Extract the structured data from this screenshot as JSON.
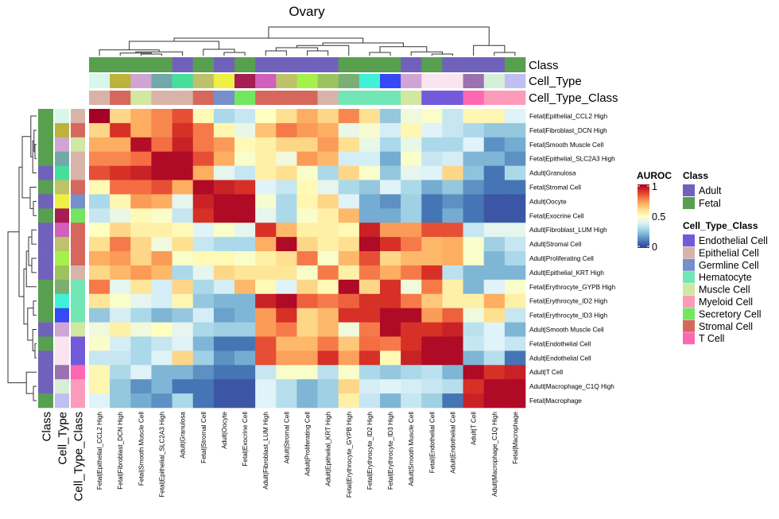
{
  "chart_data": {
    "type": "heatmap",
    "title": "Ovary",
    "colorbar": {
      "title": "AUROC",
      "range": [
        0,
        1
      ],
      "ticks": [
        "0",
        "0.5",
        "1"
      ],
      "palette": "RdYlBu reversed"
    },
    "columns": [
      "Fetal|Epithelial_CCL2 High",
      "Fetal|Fibroblast_DCN High",
      "Fetal|Smooth Muscle Cell",
      "Fetal|Epithelial_SLC2A3 High",
      "Adult|Granulosa",
      "Fetal|Stromal Cell",
      "Adult|Oocyte",
      "Fetal|Exocrine Cell",
      "Adult|Fibroblast_LUM High",
      "Adult|Stromal Cell",
      "Adult|Proliferating Cell",
      "Adult|Epithelial_KRT High",
      "Fetal|Erythrocyte_GYPB High",
      "Fetal|Erythrocyte_ID2 High",
      "Fetal|Erythrocyte_ID3 High",
      "Adult|Smooth Muscle Cell",
      "Fetal|Endothelial Cell",
      "Adult|Endothelial Cell",
      "Adult|T Cell",
      "Adult|Macrophage_C1Q High",
      "Fetal|Macrophage"
    ],
    "rows": [
      "Fetal|Epithelial_CCL2 High",
      "Fetal|Fibroblast_DCN High",
      "Fetal|Smooth Muscle Cell",
      "Fetal|Epithelial_SLC2A3 High",
      "Adult|Granulosa",
      "Fetal|Stromal Cell",
      "Adult|Oocyte",
      "Fetal|Exocrine Cell",
      "Adult|Fibroblast_LUM High",
      "Adult|Stromal Cell",
      "Adult|Proliferating Cell",
      "Adult|Epithelial_KRT High",
      "Fetal|Erythrocyte_GYPB High",
      "Fetal|Erythrocyte_ID2 High",
      "Fetal|Erythrocyte_ID3 High",
      "Adult|Smooth Muscle Cell",
      "Fetal|Endothelial Cell",
      "Adult|Endothelial Cell",
      "Adult|T Cell",
      "Adult|Macrophage_C1Q High",
      "Fetal|Macrophage"
    ],
    "values": [
      [
        1.0,
        0.62,
        0.7,
        0.76,
        0.85,
        0.52,
        0.3,
        0.35,
        0.5,
        0.6,
        0.7,
        0.62,
        0.76,
        0.6,
        0.26,
        0.45,
        0.48,
        0.35,
        0.53,
        0.53,
        0.4
      ],
      [
        0.62,
        0.9,
        0.7,
        0.76,
        0.9,
        0.78,
        0.53,
        0.43,
        0.66,
        0.78,
        0.73,
        0.7,
        0.43,
        0.47,
        0.38,
        0.53,
        0.4,
        0.35,
        0.3,
        0.26,
        0.26
      ],
      [
        0.7,
        0.7,
        0.97,
        0.8,
        0.93,
        0.78,
        0.73,
        0.52,
        0.55,
        0.62,
        0.62,
        0.73,
        0.6,
        0.43,
        0.3,
        0.43,
        0.3,
        0.3,
        0.4,
        0.15,
        0.2
      ],
      [
        0.76,
        0.76,
        0.8,
        0.98,
        0.98,
        0.85,
        0.7,
        0.48,
        0.55,
        0.45,
        0.73,
        0.68,
        0.38,
        0.38,
        0.2,
        0.48,
        0.35,
        0.38,
        0.22,
        0.22,
        0.15
      ],
      [
        0.85,
        0.9,
        0.93,
        0.98,
        0.98,
        0.7,
        0.42,
        0.35,
        0.55,
        0.6,
        0.48,
        0.3,
        0.62,
        0.48,
        0.26,
        0.42,
        0.4,
        0.62,
        0.25,
        0.1,
        0.3
      ],
      [
        0.52,
        0.8,
        0.8,
        0.85,
        0.7,
        0.98,
        0.93,
        0.9,
        0.4,
        0.35,
        0.52,
        0.42,
        0.3,
        0.26,
        0.4,
        0.3,
        0.2,
        0.26,
        0.15,
        0.1,
        0.1
      ],
      [
        0.3,
        0.53,
        0.73,
        0.7,
        0.42,
        0.93,
        0.98,
        0.98,
        0.47,
        0.3,
        0.53,
        0.62,
        0.4,
        0.2,
        0.15,
        0.28,
        0.1,
        0.15,
        0.1,
        0.05,
        0.05
      ],
      [
        0.35,
        0.43,
        0.52,
        0.48,
        0.35,
        0.9,
        0.98,
        0.98,
        0.42,
        0.3,
        0.48,
        0.55,
        0.68,
        0.2,
        0.2,
        0.28,
        0.1,
        0.2,
        0.1,
        0.05,
        0.05
      ],
      [
        0.5,
        0.62,
        0.55,
        0.55,
        0.52,
        0.4,
        0.48,
        0.42,
        0.9,
        0.68,
        0.55,
        0.55,
        0.52,
        0.93,
        0.73,
        0.73,
        0.85,
        0.85,
        0.35,
        0.42,
        0.42
      ],
      [
        0.6,
        0.78,
        0.62,
        0.45,
        0.6,
        0.35,
        0.3,
        0.3,
        0.7,
        0.98,
        0.62,
        0.55,
        0.6,
        0.98,
        0.9,
        0.78,
        0.68,
        0.7,
        0.48,
        0.28,
        0.35
      ],
      [
        0.7,
        0.73,
        0.62,
        0.73,
        0.48,
        0.52,
        0.52,
        0.48,
        0.55,
        0.6,
        0.78,
        0.48,
        0.68,
        0.85,
        0.62,
        0.68,
        0.68,
        0.7,
        0.48,
        0.22,
        0.3
      ],
      [
        0.62,
        0.68,
        0.73,
        0.68,
        0.3,
        0.42,
        0.62,
        0.58,
        0.58,
        0.58,
        0.48,
        0.78,
        0.55,
        0.78,
        0.7,
        0.78,
        0.9,
        0.33,
        0.22,
        0.22,
        0.22
      ],
      [
        0.78,
        0.42,
        0.58,
        0.38,
        0.62,
        0.3,
        0.38,
        0.68,
        0.52,
        0.4,
        0.62,
        0.52,
        0.98,
        0.62,
        0.9,
        0.45,
        0.78,
        0.55,
        0.22,
        0.4,
        0.48
      ],
      [
        0.58,
        0.48,
        0.42,
        0.38,
        0.53,
        0.26,
        0.22,
        0.22,
        0.93,
        0.98,
        0.82,
        0.78,
        0.82,
        0.9,
        0.9,
        0.78,
        0.65,
        0.55,
        0.55,
        0.7,
        0.55
      ],
      [
        0.26,
        0.38,
        0.3,
        0.22,
        0.26,
        0.38,
        0.18,
        0.22,
        0.73,
        0.9,
        0.62,
        0.68,
        0.9,
        0.9,
        0.98,
        0.98,
        0.73,
        0.82,
        0.45,
        0.6,
        0.35
      ],
      [
        0.45,
        0.55,
        0.45,
        0.5,
        0.42,
        0.3,
        0.28,
        0.28,
        0.73,
        0.78,
        0.62,
        0.68,
        0.45,
        0.78,
        0.98,
        0.9,
        0.9,
        0.93,
        0.33,
        0.4,
        0.22
      ],
      [
        0.48,
        0.38,
        0.3,
        0.35,
        0.4,
        0.22,
        0.1,
        0.1,
        0.85,
        0.68,
        0.68,
        0.78,
        0.65,
        0.8,
        0.78,
        0.9,
        0.98,
        0.98,
        0.35,
        0.4,
        0.35
      ],
      [
        0.35,
        0.35,
        0.3,
        0.4,
        0.62,
        0.28,
        0.15,
        0.2,
        0.85,
        0.72,
        0.72,
        0.9,
        0.72,
        0.9,
        0.52,
        0.93,
        0.98,
        0.98,
        0.22,
        0.32,
        0.1
      ],
      [
        0.53,
        0.3,
        0.4,
        0.22,
        0.22,
        0.15,
        0.1,
        0.1,
        0.35,
        0.48,
        0.48,
        0.33,
        0.48,
        0.3,
        0.26,
        0.3,
        0.33,
        0.22,
        0.98,
        0.9,
        0.93
      ],
      [
        0.53,
        0.26,
        0.15,
        0.22,
        0.1,
        0.1,
        0.05,
        0.05,
        0.4,
        0.32,
        0.22,
        0.28,
        0.62,
        0.38,
        0.4,
        0.38,
        0.35,
        0.32,
        0.9,
        0.98,
        0.98
      ],
      [
        0.4,
        0.26,
        0.2,
        0.15,
        0.3,
        0.1,
        0.05,
        0.05,
        0.4,
        0.32,
        0.22,
        0.28,
        0.55,
        0.35,
        0.22,
        0.35,
        0.28,
        0.1,
        0.93,
        0.98,
        0.98
      ]
    ],
    "annotations": {
      "Class": [
        "Fetal",
        "Fetal",
        "Fetal",
        "Fetal",
        "Adult",
        "Fetal",
        "Adult",
        "Fetal",
        "Adult",
        "Adult",
        "Adult",
        "Adult",
        "Fetal",
        "Fetal",
        "Fetal",
        "Adult",
        "Fetal",
        "Adult",
        "Adult",
        "Adult",
        "Fetal"
      ],
      "Cell_Type_Class": [
        "Epithelial Cell",
        "Stromal Cell",
        "Muscle Cell",
        "Epithelial Cell",
        "Epithelial Cell",
        "Stromal Cell",
        "Germline Cell",
        "Secretory Cell",
        "Stromal Cell",
        "Stromal Cell",
        "Stromal Cell",
        "Epithelial Cell",
        "Hematocyte",
        "Hematocyte",
        "Hematocyte",
        "Muscle Cell",
        "Endothelial Cell",
        "Endothelial Cell",
        "T Cell",
        "Myeloid Cell",
        "Myeloid Cell"
      ],
      "Cell_Type_colors": [
        "#d7f7ec",
        "#bdb23c",
        "#d1a5d3",
        "#71a9a9",
        "#47de9a",
        "#bec26a",
        "#eef043",
        "#a71d52",
        "#d15fbb",
        "#bec26a",
        "#a5f04a",
        "#9dc35f",
        "#7bae72",
        "#40f1d8",
        "#3749f4",
        "#d1a5d3",
        "#f9e4ef",
        "#f9e4ef",
        "#9b72b0",
        "#d7eed8",
        "#c0bff2"
      ]
    },
    "annotation_labels": [
      "Class",
      "Cell_Type",
      "Cell_Type_Class"
    ],
    "legends": {
      "Class": {
        "title": "Class",
        "items": [
          {
            "label": "Adult",
            "color": "#7062bb"
          },
          {
            "label": "Fetal",
            "color": "#589f4f"
          }
        ]
      },
      "Cell_Type_Class": {
        "title": "Cell_Type_Class",
        "items": [
          {
            "label": "Endothelial Cell",
            "color": "#735adb"
          },
          {
            "label": "Epithelial Cell",
            "color": "#d8b4a8"
          },
          {
            "label": "Germline Cell",
            "color": "#7590cb"
          },
          {
            "label": "Hematocyte",
            "color": "#73e6b6"
          },
          {
            "label": "Muscle Cell",
            "color": "#d2e7a2"
          },
          {
            "label": "Myeloid Cell",
            "color": "#fc9bba"
          },
          {
            "label": "Secretory Cell",
            "color": "#73e65f"
          },
          {
            "label": "Stromal Cell",
            "color": "#d6675d"
          },
          {
            "label": "T Cell",
            "color": "#fe67b1"
          }
        ]
      }
    },
    "legend_placement": "right"
  }
}
